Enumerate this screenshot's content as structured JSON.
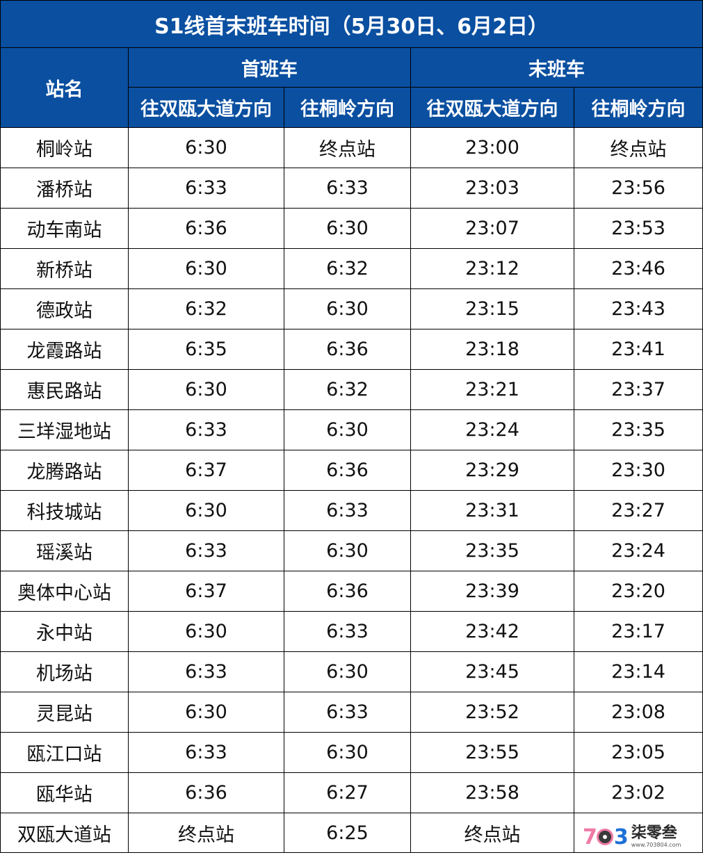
{
  "title": "S1线首末班车时间（5月30日、6月2日）",
  "headers": {
    "station": "站名",
    "first_train": "首班车",
    "last_train": "末班车",
    "dir_shuangou": "往双瓯大道方向",
    "dir_tongling": "往桐岭方向"
  },
  "rows": [
    {
      "station": "桐岭站",
      "first_so": "6:30",
      "first_tl": "终点站",
      "last_so": "23:00",
      "last_tl": "终点站"
    },
    {
      "station": "潘桥站",
      "first_so": "6:33",
      "first_tl": "6:33",
      "last_so": "23:03",
      "last_tl": "23:56"
    },
    {
      "station": "动车南站",
      "first_so": "6:36",
      "first_tl": "6:30",
      "last_so": "23:07",
      "last_tl": "23:53"
    },
    {
      "station": "新桥站",
      "first_so": "6:30",
      "first_tl": "6:32",
      "last_so": "23:12",
      "last_tl": "23:46"
    },
    {
      "station": "德政站",
      "first_so": "6:32",
      "first_tl": "6:30",
      "last_so": "23:15",
      "last_tl": "23:43"
    },
    {
      "station": "龙霞路站",
      "first_so": "6:35",
      "first_tl": "6:36",
      "last_so": "23:18",
      "last_tl": "23:41"
    },
    {
      "station": "惠民路站",
      "first_so": "6:30",
      "first_tl": "6:32",
      "last_so": "23:21",
      "last_tl": "23:37"
    },
    {
      "station": "三垟湿地站",
      "first_so": "6:33",
      "first_tl": "6:30",
      "last_so": "23:24",
      "last_tl": "23:35"
    },
    {
      "station": "龙腾路站",
      "first_so": "6:37",
      "first_tl": "6:36",
      "last_so": "23:29",
      "last_tl": "23:30"
    },
    {
      "station": "科技城站",
      "first_so": "6:30",
      "first_tl": "6:33",
      "last_so": "23:31",
      "last_tl": "23:27"
    },
    {
      "station": "瑶溪站",
      "first_so": "6:33",
      "first_tl": "6:30",
      "last_so": "23:35",
      "last_tl": "23:24"
    },
    {
      "station": "奥体中心站",
      "first_so": "6:37",
      "first_tl": "6:36",
      "last_so": "23:39",
      "last_tl": "23:20"
    },
    {
      "station": "永中站",
      "first_so": "6:30",
      "first_tl": "6:33",
      "last_so": "23:42",
      "last_tl": "23:17"
    },
    {
      "station": "机场站",
      "first_so": "6:33",
      "first_tl": "6:30",
      "last_so": "23:45",
      "last_tl": "23:14"
    },
    {
      "station": "灵昆站",
      "first_so": "6:30",
      "first_tl": "6:33",
      "last_so": "23:52",
      "last_tl": "23:08"
    },
    {
      "station": "瓯江口站",
      "first_so": "6:33",
      "first_tl": "6:30",
      "last_so": "23:55",
      "last_tl": "23:05"
    },
    {
      "station": "瓯华站",
      "first_so": "6:36",
      "first_tl": "6:27",
      "last_so": "23:58",
      "last_tl": "23:02"
    },
    {
      "station": "双瓯大道站",
      "first_so": "终点站",
      "first_tl": "6:25",
      "last_so": "终点站",
      "last_tl": ""
    }
  ],
  "watermark": {
    "logo_text": "703",
    "name": "柒零叁",
    "url": "www.703804.com"
  },
  "colors": {
    "header_bg": "#0a4fa0",
    "header_text": "#ffffff",
    "grid": "#000000"
  }
}
